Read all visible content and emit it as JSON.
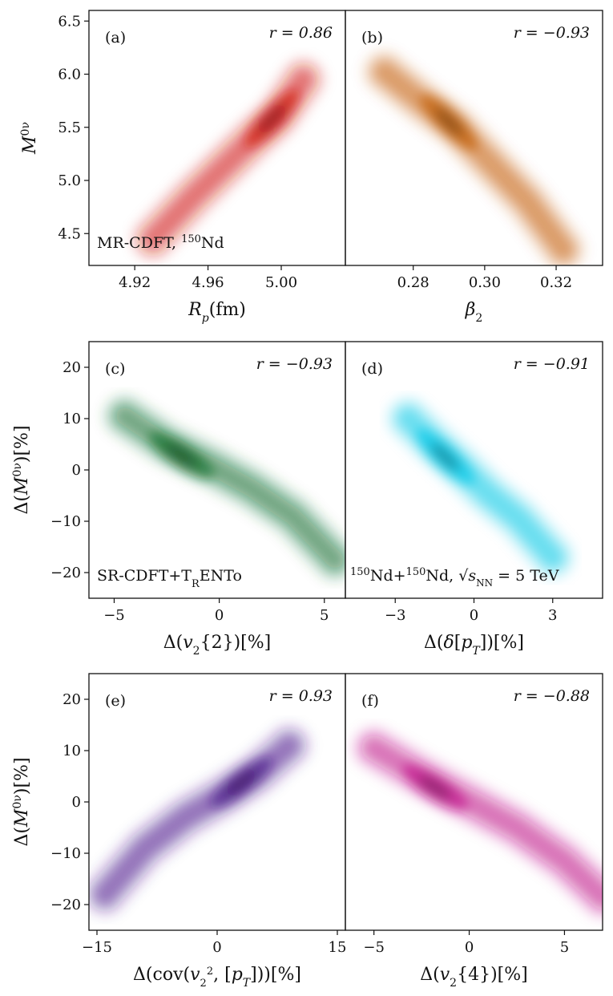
{
  "figure": {
    "rows": [
      {
        "ylabel": "M0ν"
      },
      {
        "ylabel": "Δ(M0ν)[%]"
      },
      {
        "ylabel": "Δ(M0ν)[%]"
      }
    ]
  },
  "chart_data": [
    {
      "type": "heatmap",
      "id": "a",
      "panel_label": "(a)",
      "r_text": "r = 0.86",
      "xlabel": "Rp(fm)",
      "ylabel": "M0ν",
      "xlim": [
        4.895,
        5.035
      ],
      "ylim": [
        4.2,
        6.6
      ],
      "xticks": [
        4.92,
        4.96,
        5.0
      ],
      "xtick_labels": [
        "4.92",
        "4.96",
        "5.00"
      ],
      "yticks": [
        4.5,
        5.0,
        5.5,
        6.0,
        6.5
      ],
      "ytick_labels": [
        "4.5",
        "5.0",
        "5.5",
        "6.0",
        "6.5"
      ],
      "annotation": "MR-CDFT, 150Nd",
      "color": "#d11a12",
      "trend": [
        [
          4.93,
          4.45
        ],
        [
          4.952,
          4.85
        ],
        [
          4.97,
          5.15
        ],
        [
          4.985,
          5.4
        ],
        [
          4.998,
          5.6
        ],
        [
          5.012,
          5.95
        ]
      ],
      "peak": [
        4.995,
        5.58
      ],
      "spread": 0.22
    },
    {
      "type": "heatmap",
      "id": "b",
      "panel_label": "(b)",
      "r_text": "r = −0.93",
      "xlabel": "β2",
      "ylabel": "",
      "xlim": [
        0.261,
        0.333
      ],
      "ylim": [
        4.2,
        6.6
      ],
      "xticks": [
        0.28,
        0.3,
        0.32
      ],
      "xtick_labels": [
        "0.28",
        "0.30",
        "0.32"
      ],
      "yticks": [],
      "ytick_labels": [],
      "color": "#c25a00",
      "trend": [
        [
          0.272,
          6.02
        ],
        [
          0.282,
          5.75
        ],
        [
          0.292,
          5.5
        ],
        [
          0.302,
          5.15
        ],
        [
          0.312,
          4.8
        ],
        [
          0.322,
          4.35
        ]
      ],
      "peak": [
        0.29,
        5.55
      ],
      "spread": 0.22
    },
    {
      "type": "heatmap",
      "id": "c",
      "panel_label": "(c)",
      "r_text": "r = −0.93",
      "xlabel": "Δ(v2{2})[%]",
      "ylabel": "Δ(M0ν)[%]",
      "xlim": [
        -6.2,
        6.0
      ],
      "ylim": [
        -25,
        25
      ],
      "xticks": [
        -5,
        0,
        5
      ],
      "xtick_labels": [
        "−5",
        "0",
        "5"
      ],
      "yticks": [
        -20,
        -10,
        0,
        10,
        20
      ],
      "ytick_labels": [
        "−20",
        "−10",
        "0",
        "10",
        "20"
      ],
      "annotation": "SR-CDFT+TRENTo",
      "color": "#0f6e2c",
      "trend": [
        [
          -4.5,
          10.5
        ],
        [
          -2.5,
          5.0
        ],
        [
          -0.5,
          1.0
        ],
        [
          1.5,
          -3.5
        ],
        [
          3.5,
          -9.0
        ],
        [
          5.5,
          -17.5
        ]
      ],
      "peak": [
        -1.8,
        2.8
      ],
      "spread": 0.22
    },
    {
      "type": "heatmap",
      "id": "d",
      "panel_label": "(d)",
      "r_text": "r = −0.91",
      "xlabel": "Δ(δ[pT])[%]",
      "ylabel": "",
      "xlim": [
        -4.9,
        4.9
      ],
      "ylim": [
        -25,
        25
      ],
      "xticks": [
        -3,
        0,
        3
      ],
      "xtick_labels": [
        "−3",
        "0",
        "3"
      ],
      "yticks": [],
      "ytick_labels": [],
      "annotation": "150Nd+150Nd, √sNN = 5 TeV",
      "color": "#00c8e6",
      "trend": [
        [
          -2.5,
          10.0
        ],
        [
          -1.5,
          5.0
        ],
        [
          -0.5,
          0.5
        ],
        [
          0.5,
          -4.5
        ],
        [
          1.7,
          -9.5
        ],
        [
          3.0,
          -17.0
        ]
      ],
      "peak": [
        -1.1,
        2.5
      ],
      "spread": 0.22
    },
    {
      "type": "heatmap",
      "id": "e",
      "panel_label": "(e)",
      "r_text": "r = 0.93",
      "xlabel": "Δ(cov(v2², [pT]))[%]",
      "ylabel": "Δ(M0ν)[%]",
      "xlim": [
        -16,
        16
      ],
      "ylim": [
        -25,
        25
      ],
      "xticks": [
        -15,
        0,
        15
      ],
      "xtick_labels": [
        "−15",
        "0",
        "15"
      ],
      "yticks": [
        -20,
        -10,
        0,
        10,
        20
      ],
      "ytick_labels": [
        "−20",
        "−10",
        "0",
        "10",
        "20"
      ],
      "color": "#4b1a8c",
      "trend": [
        [
          -14.0,
          -18.0
        ],
        [
          -9.0,
          -9.0
        ],
        [
          -4.0,
          -3.0
        ],
        [
          1.0,
          1.5
        ],
        [
          5.0,
          5.5
        ],
        [
          9.0,
          11.0
        ]
      ],
      "peak": [
        3.0,
        3.8
      ],
      "spread": 0.22
    },
    {
      "type": "heatmap",
      "id": "f",
      "panel_label": "(f)",
      "r_text": "r = −0.88",
      "xlabel": "Δ(v2{4})[%]",
      "ylabel": "",
      "xlim": [
        -6.5,
        7.0
      ],
      "ylim": [
        -25,
        25
      ],
      "xticks": [
        -5,
        0,
        5
      ],
      "xtick_labels": [
        "−5",
        "0",
        "5"
      ],
      "yticks": [],
      "ytick_labels": [],
      "color": "#c0108a",
      "trend": [
        [
          -5.0,
          10.5
        ],
        [
          -2.5,
          5.0
        ],
        [
          0.0,
          0.0
        ],
        [
          2.5,
          -5.0
        ],
        [
          5.0,
          -11.5
        ],
        [
          7.0,
          -18.5
        ]
      ],
      "peak": [
        -1.8,
        2.8
      ],
      "spread": 0.26
    }
  ]
}
